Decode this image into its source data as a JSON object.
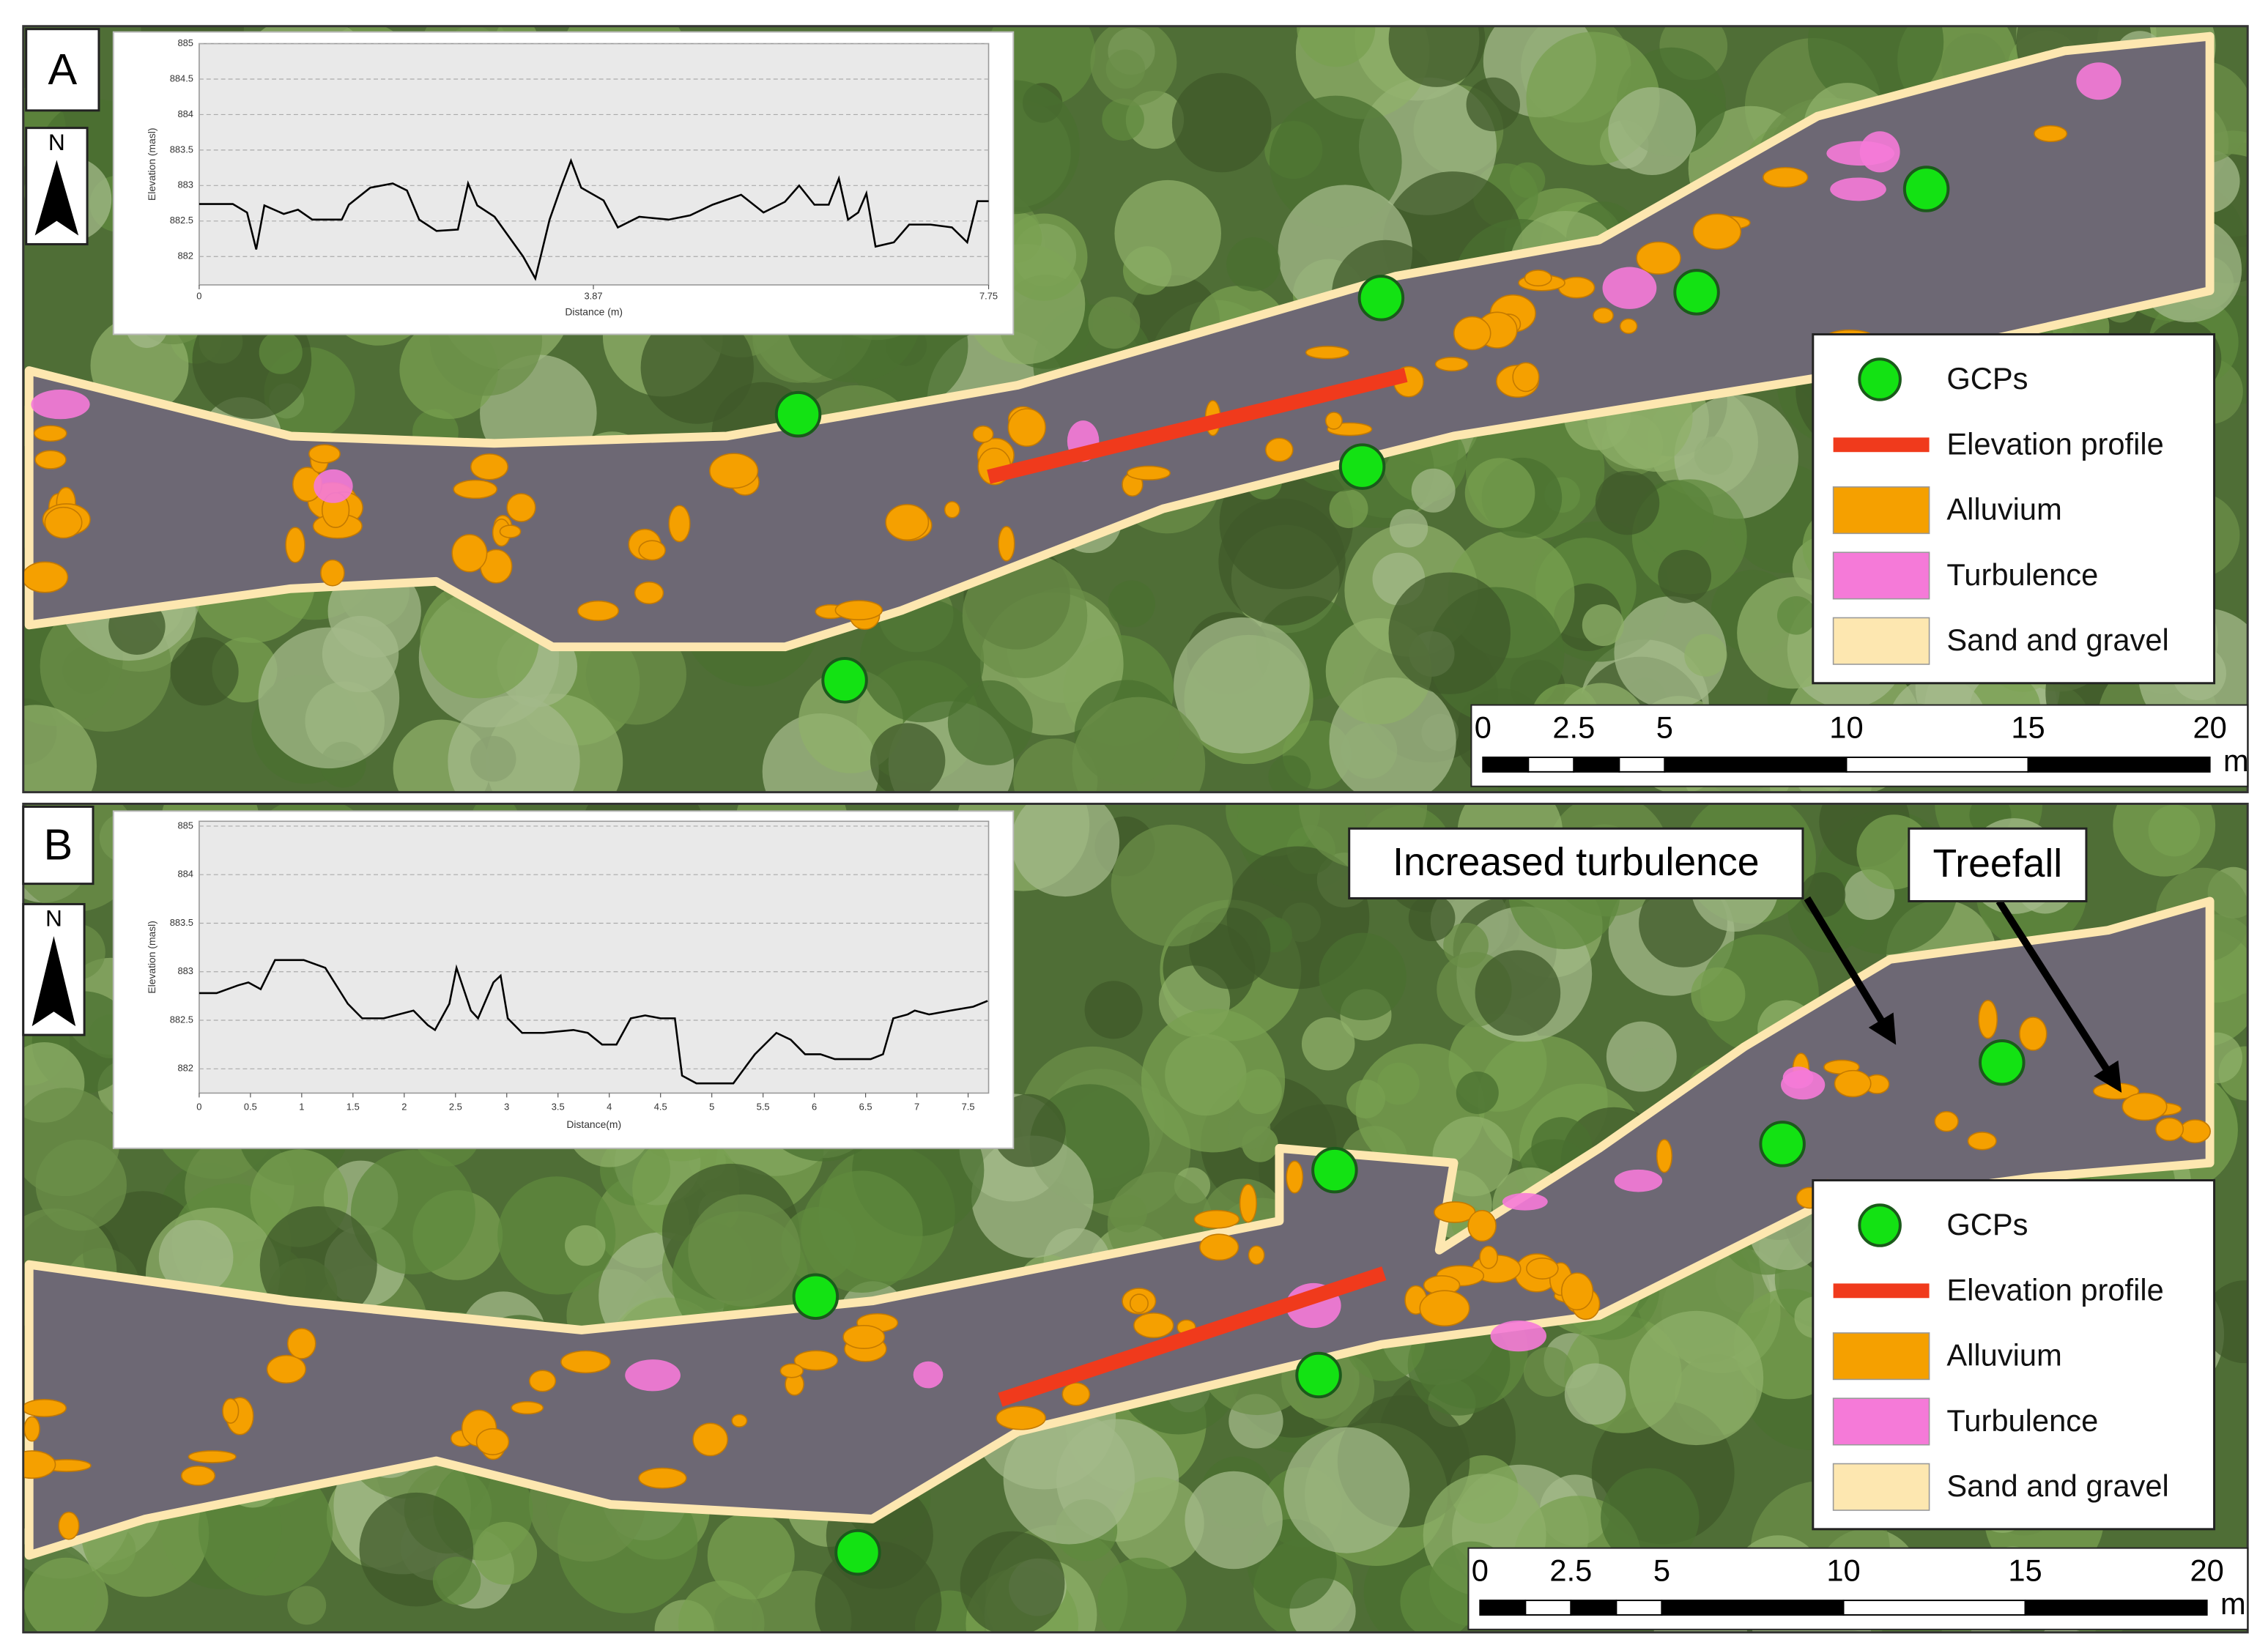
{
  "panels": [
    {
      "label": "A",
      "north": "N",
      "profile": {
        "type": "line",
        "y_label": "Elevation (masl)",
        "x_label": "Distance (m)",
        "color": "#000000",
        "grid": true,
        "x": [
          0,
          0.33,
          0.47,
          0.56,
          0.64,
          0.83,
          0.97,
          1.11,
          1.4,
          1.47,
          1.68,
          1.9,
          2.04,
          2.16,
          2.33,
          2.54,
          2.64,
          2.73,
          2.9,
          3.18,
          3.3,
          3.44,
          3.55,
          3.65,
          3.75,
          3.97,
          4.11,
          4.32,
          4.61,
          4.82,
          5.04,
          5.32,
          5.54,
          5.75,
          5.89,
          6.04,
          6.18,
          6.28,
          6.37,
          6.47,
          6.55,
          6.64,
          6.82,
          6.97,
          7.18,
          7.39,
          7.54,
          7.64,
          7.75
        ],
        "values": [
          882.74,
          882.74,
          882.62,
          882.1,
          882.72,
          882.6,
          882.66,
          882.52,
          882.52,
          882.73,
          882.97,
          883.03,
          882.93,
          882.52,
          882.36,
          882.38,
          883.03,
          882.72,
          882.56,
          882.0,
          881.69,
          882.52,
          882.97,
          883.35,
          882.97,
          882.79,
          882.41,
          882.56,
          882.52,
          882.58,
          882.73,
          882.87,
          882.62,
          882.77,
          883.0,
          882.73,
          882.73,
          883.1,
          882.52,
          882.62,
          882.89,
          882.14,
          882.2,
          882.45,
          882.45,
          882.41,
          882.2,
          882.78,
          882.78
        ],
        "xlim": [
          0,
          7.75
        ],
        "ylim": [
          881.6,
          885
        ],
        "xticks": [
          0,
          3.87,
          7.75
        ],
        "yticks": [
          885,
          884.5,
          884,
          883.5,
          883,
          882.5,
          882
        ]
      },
      "legend": [
        {
          "name": "GCPs",
          "color": "#13e213"
        },
        {
          "name": "Elevation profile",
          "color": "#f03a1c"
        },
        {
          "name": "Alluvium",
          "color": "#f5a000"
        },
        {
          "name": "Turbulence",
          "color": "#f57ad8"
        },
        {
          "name": "Sand and gravel",
          "color": "#fde7b0"
        }
      ],
      "scale": {
        "ticks": [
          0,
          2.5,
          5,
          10,
          15,
          20
        ],
        "unit": "m"
      }
    },
    {
      "label": "B",
      "north": "N",
      "profile": {
        "type": "line",
        "y_label": "Elevation (masl)",
        "x_label": "Distance(m)",
        "color": "#000000",
        "grid": true,
        "x": [
          0,
          0.17,
          0.38,
          0.48,
          0.6,
          0.74,
          1.02,
          1.23,
          1.45,
          1.59,
          1.8,
          2.09,
          2.23,
          2.3,
          2.44,
          2.51,
          2.58,
          2.65,
          2.72,
          2.87,
          2.94,
          3.01,
          3.15,
          3.36,
          3.65,
          3.79,
          3.93,
          4.07,
          4.21,
          4.35,
          4.5,
          4.64,
          4.71,
          4.85,
          5.06,
          5.21,
          5.42,
          5.63,
          5.77,
          5.91,
          6.06,
          6.2,
          6.41,
          6.55,
          6.67,
          6.77,
          6.91,
          6.98,
          7.12,
          7.33,
          7.55,
          7.69
        ],
        "values": [
          882.78,
          882.78,
          882.86,
          882.89,
          882.82,
          883.12,
          883.12,
          883.04,
          882.67,
          882.52,
          882.52,
          882.6,
          882.45,
          882.4,
          882.67,
          883.04,
          882.82,
          882.6,
          882.52,
          882.89,
          882.96,
          882.52,
          882.37,
          882.37,
          882.4,
          882.37,
          882.25,
          882.25,
          882.52,
          882.55,
          882.52,
          882.52,
          881.93,
          881.85,
          881.85,
          881.85,
          882.15,
          882.37,
          882.3,
          882.15,
          882.15,
          882.1,
          882.1,
          882.1,
          882.15,
          882.52,
          882.56,
          882.6,
          882.56,
          882.6,
          882.64,
          882.7
        ],
        "xlim": [
          0,
          7.7
        ],
        "ylim": [
          881.75,
          884.55
        ],
        "xticks": [
          0,
          0.5,
          1,
          1.5,
          2,
          2.5,
          3,
          3.5,
          4,
          4.5,
          5,
          5.5,
          6,
          6.5,
          7,
          7.5
        ],
        "yticks": [
          {
            "value": 884.5,
            "label": "885"
          },
          884,
          883.5,
          883,
          882.5,
          882
        ]
      },
      "legend": [
        {
          "name": "GCPs",
          "color": "#13e213"
        },
        {
          "name": "Elevation profile",
          "color": "#f03a1c"
        },
        {
          "name": "Alluvium",
          "color": "#f5a000"
        },
        {
          "name": "Turbulence",
          "color": "#f57ad8"
        },
        {
          "name": "Sand and gravel",
          "color": "#fde7b0"
        }
      ],
      "scale": {
        "ticks": [
          0,
          2.5,
          5,
          10,
          15,
          20
        ],
        "unit": "m"
      },
      "callouts": [
        "Increased turbulence",
        "Treefall"
      ]
    }
  ]
}
